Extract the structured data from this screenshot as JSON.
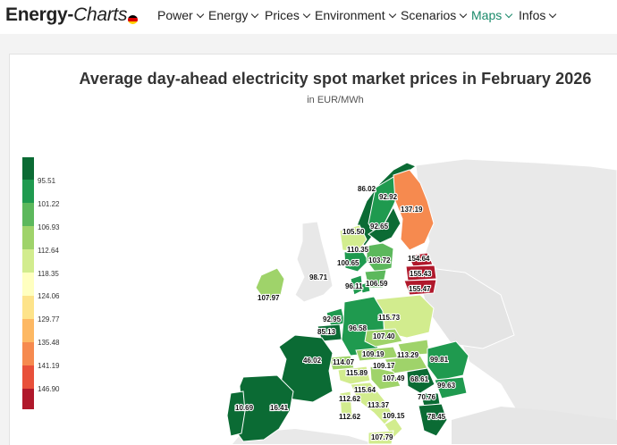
{
  "nav": {
    "logo_bold": "Energy-",
    "logo_italic": "Charts",
    "flag_colors": [
      "#000000",
      "#dd0000",
      "#ffce00"
    ],
    "menu": [
      {
        "label": "Power",
        "active": false
      },
      {
        "label": "Energy",
        "active": false
      },
      {
        "label": "Prices",
        "active": false
      },
      {
        "label": "Environment",
        "active": false
      },
      {
        "label": "Scenarios",
        "active": false
      },
      {
        "label": "Maps",
        "active": true
      },
      {
        "label": "Infos",
        "active": false
      }
    ]
  },
  "chart": {
    "title": "Average day-ahead electricity spot market prices in February 2026",
    "subtitle": "in EUR/MWh"
  },
  "legend": {
    "labels": [
      "95.51",
      "101.22",
      "106.93",
      "112.64",
      "118.35",
      "124.06",
      "129.77",
      "135.48",
      "141.19",
      "146.90"
    ],
    "colors": [
      "#0b6b34",
      "#1f9a4f",
      "#5cb85c",
      "#9fd36a",
      "#d2ec8e",
      "#ffffc0",
      "#fde38a",
      "#fdb863",
      "#f68a4f",
      "#e8503a",
      "#b0182b"
    ]
  },
  "map_values": {
    "no_north": "86.02",
    "se_north": "92.92",
    "se_central": "92.65",
    "finland": "137.19",
    "norway_west": "105.50",
    "norway_south": "110.35",
    "norway_southeast": "100.65",
    "sweden_south": "103.72",
    "estonia": "154.64",
    "latvia": "155.43",
    "lithuania": "155.47",
    "sea_north": "98.71",
    "denmark_east": "96.11",
    "se_southmost": "106.59",
    "ireland": "107.97",
    "netherlands": "92.95",
    "belgium": "85.13",
    "germany": "96.58",
    "poland": "115.73",
    "czechia": "107.40",
    "france": "46.02",
    "austria": "109.19",
    "slovakia": "113.29",
    "switzerland": "114.07",
    "hungary": "109.17",
    "romania": "99.81",
    "italy_north": "115.89",
    "croatia": "107.49",
    "serbia": "68.61",
    "bulgaria": "99.63",
    "italy_central": "115.64",
    "italy_centralsouth": "113.37",
    "italy_west": "112.62",
    "italy_sardinia": "112.62",
    "italy_south": "109.15",
    "spain": "16.41",
    "portugal": "10.69",
    "north_macedonia": "70.76",
    "greece": "78.45",
    "italy_sicily": "107.79"
  }
}
